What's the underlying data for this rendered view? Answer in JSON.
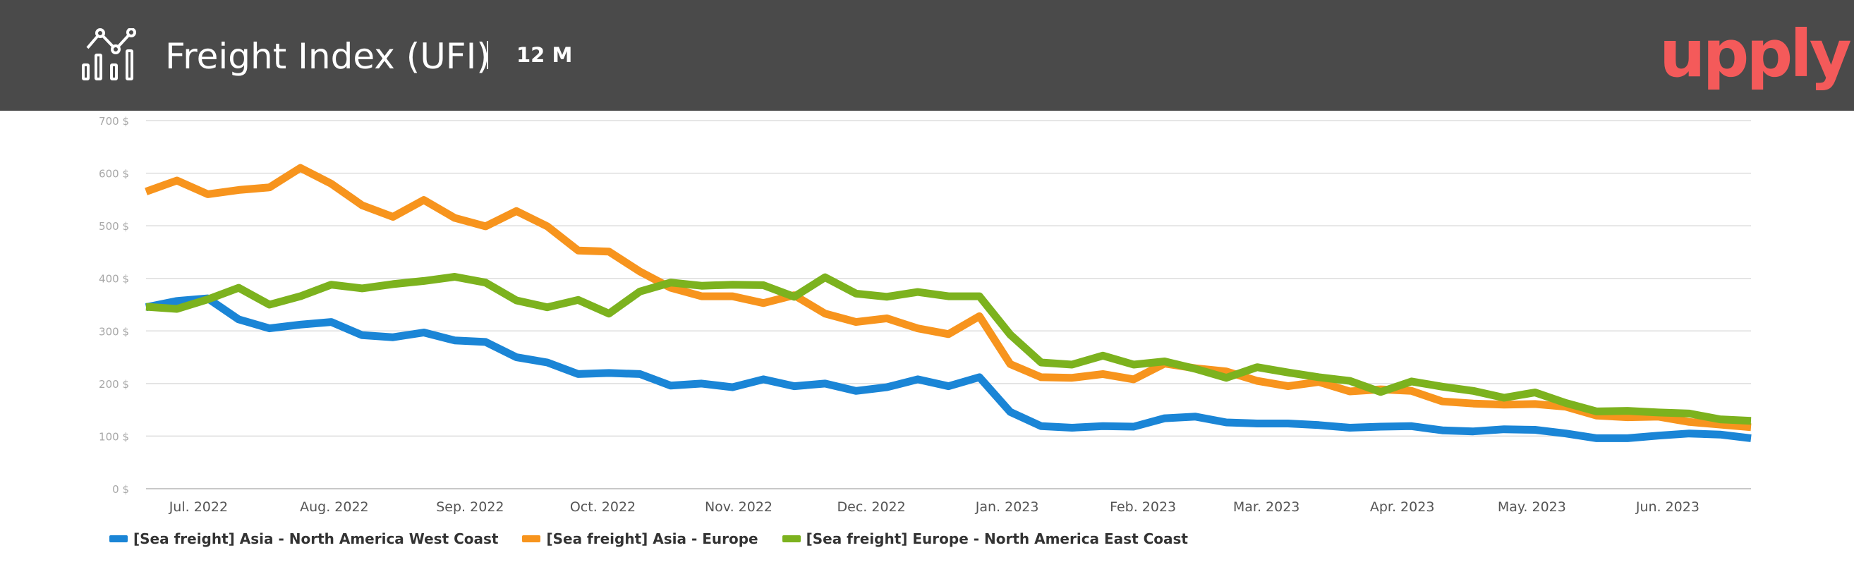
{
  "header": {
    "title": "Freight Index (UFI)",
    "period": "12 M",
    "logo_text": "upply",
    "icon": "chart-analytics-icon",
    "background": "#4a4a4a",
    "logo_color": "#f45a5a"
  },
  "chart_data": {
    "type": "line",
    "ylim": [
      0,
      700
    ],
    "y_ticks": [
      "0 $",
      "100 $",
      "200 $",
      "300 $",
      "400 $",
      "500 $",
      "600 $",
      "700 $"
    ],
    "y_tick_values": [
      0,
      100,
      200,
      300,
      400,
      500,
      600,
      700
    ],
    "x_tick_labels": [
      "Jul. 2022",
      "Aug. 2022",
      "Sep. 2022",
      "Oct. 2022",
      "Nov. 2022",
      "Dec. 2022",
      "Jan. 2023",
      "Feb. 2023",
      "Mar. 2023",
      "Apr. 2023",
      "May. 2023",
      "Jun. 2023"
    ],
    "x_tick_weeks": [
      1.7,
      6.1,
      10.5,
      14.8,
      19.2,
      23.5,
      27.9,
      32.3,
      36.3,
      40.7,
      44.9,
      49.3
    ],
    "x_range": [
      0,
      52
    ],
    "grid": true,
    "legend_position": "bottom-left",
    "series": [
      {
        "name": "[Sea freight] Asia - North America West Coast",
        "color": "#1a85d6",
        "values": [
          345,
          357,
          362,
          322,
          305,
          312,
          317,
          292,
          288,
          297,
          282,
          279,
          250,
          240,
          218,
          220,
          218,
          196,
          200,
          193,
          208,
          195,
          200,
          186,
          193,
          208,
          195,
          212,
          146,
          119,
          116,
          119,
          118,
          134,
          137,
          126,
          124,
          124,
          121,
          116,
          118,
          119,
          111,
          109,
          113,
          112,
          105,
          96,
          96,
          101,
          105,
          103,
          96
        ]
      },
      {
        "name": "[Sea freight] Asia - Europe",
        "color": "#f7941d",
        "values": [
          565,
          586,
          560,
          568,
          573,
          610,
          580,
          539,
          517,
          549,
          515,
          499,
          528,
          499,
          453,
          451,
          413,
          382,
          366,
          366,
          353,
          368,
          333,
          317,
          324,
          305,
          294,
          328,
          237,
          212,
          211,
          218,
          208,
          238,
          229,
          223,
          205,
          195,
          203,
          185,
          189,
          186,
          166,
          162,
          160,
          161,
          156,
          139,
          136,
          137,
          127,
          122,
          117
        ]
      },
      {
        "name": "[Sea freight] Europe - North America East Coast",
        "color": "#7cb21e",
        "values": [
          346,
          342,
          360,
          382,
          350,
          366,
          388,
          381,
          389,
          395,
          403,
          392,
          358,
          345,
          359,
          333,
          375,
          392,
          386,
          388,
          387,
          365,
          402,
          371,
          365,
          374,
          366,
          366,
          293,
          240,
          236,
          253,
          236,
          242,
          228,
          211,
          231,
          221,
          212,
          205,
          184,
          204,
          194,
          186,
          173,
          183,
          163,
          147,
          148,
          145,
          143,
          132,
          129
        ]
      }
    ]
  }
}
